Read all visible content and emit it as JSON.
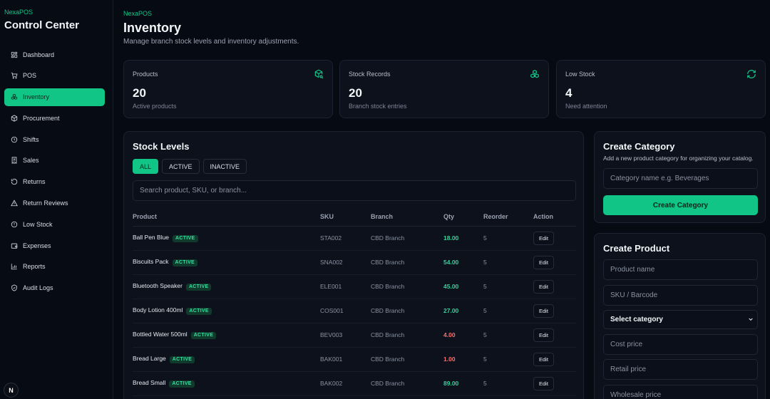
{
  "sidebar": {
    "brand_small": "NexaPOS",
    "brand_title": "Control Center",
    "items": [
      {
        "label": "Dashboard",
        "icon": "dashboard-icon"
      },
      {
        "label": "POS",
        "icon": "cart-icon"
      },
      {
        "label": "Inventory",
        "icon": "boxes-icon",
        "active": true
      },
      {
        "label": "Procurement",
        "icon": "package-icon"
      },
      {
        "label": "Shifts",
        "icon": "clock-icon"
      },
      {
        "label": "Sales",
        "icon": "receipt-icon"
      },
      {
        "label": "Returns",
        "icon": "undo-icon"
      },
      {
        "label": "Return Reviews",
        "icon": "warning-icon"
      },
      {
        "label": "Low Stock",
        "icon": "alert-circle-icon"
      },
      {
        "label": "Expenses",
        "icon": "wallet-icon"
      },
      {
        "label": "Reports",
        "icon": "bar-chart-icon"
      },
      {
        "label": "Audit Logs",
        "icon": "shield-icon"
      }
    ],
    "avatar_letter": "N"
  },
  "header": {
    "breadcrumb": "NexaPOS",
    "title": "Inventory",
    "subtitle": "Manage branch stock levels and inventory adjustments."
  },
  "stats": [
    {
      "label": "Products",
      "value": "20",
      "sub": "Active products",
      "icon": "package-search-icon"
    },
    {
      "label": "Stock Records",
      "value": "20",
      "sub": "Branch stock entries",
      "icon": "boxes-icon"
    },
    {
      "label": "Low Stock",
      "value": "4",
      "sub": "Need attention",
      "icon": "refresh-icon"
    }
  ],
  "stock": {
    "title": "Stock Levels",
    "filters": [
      "ALL",
      "ACTIVE",
      "INACTIVE"
    ],
    "search_placeholder": "Search product, SKU, or branch...",
    "columns": [
      "Product",
      "SKU",
      "Branch",
      "Qty",
      "Reorder",
      "Action"
    ],
    "rows": [
      {
        "product": "Ball Pen Blue",
        "status": "ACTIVE",
        "sku": "STA002",
        "branch": "CBD Branch",
        "qty": "18.00",
        "reorder": "5",
        "action": "Edit",
        "low": false
      },
      {
        "product": "Biscuits Pack",
        "status": "ACTIVE",
        "sku": "SNA002",
        "branch": "CBD Branch",
        "qty": "54.00",
        "reorder": "5",
        "action": "Edit",
        "low": false
      },
      {
        "product": "Bluetooth Speaker",
        "status": "ACTIVE",
        "sku": "ELE001",
        "branch": "CBD Branch",
        "qty": "45.00",
        "reorder": "5",
        "action": "Edit",
        "low": false
      },
      {
        "product": "Body Lotion 400ml",
        "status": "ACTIVE",
        "sku": "COS001",
        "branch": "CBD Branch",
        "qty": "27.00",
        "reorder": "5",
        "action": "Edit",
        "low": false
      },
      {
        "product": "Bottled Water 500ml",
        "status": "ACTIVE",
        "sku": "BEV003",
        "branch": "CBD Branch",
        "qty": "4.00",
        "reorder": "5",
        "action": "Edit",
        "low": true
      },
      {
        "product": "Bread Large",
        "status": "ACTIVE",
        "sku": "BAK001",
        "branch": "CBD Branch",
        "qty": "1.00",
        "reorder": "5",
        "action": "Edit",
        "low": true
      },
      {
        "product": "Bread Small",
        "status": "ACTIVE",
        "sku": "BAK002",
        "branch": "CBD Branch",
        "qty": "89.00",
        "reorder": "5",
        "action": "Edit",
        "low": false
      }
    ],
    "colors": {
      "qty_ok": "#34d399",
      "qty_low": "#f87171"
    }
  },
  "create_category": {
    "title": "Create Category",
    "description": "Add a new product category for organizing your catalog.",
    "name_placeholder": "Category name e.g. Beverages",
    "button": "Create Category"
  },
  "create_product": {
    "title": "Create Product",
    "name_placeholder": "Product name",
    "sku_placeholder": "SKU / Barcode",
    "category_selected": "Select category",
    "cost_placeholder": "Cost price",
    "retail_placeholder": "Retail price",
    "wholesale_placeholder": "Wholesale price"
  }
}
